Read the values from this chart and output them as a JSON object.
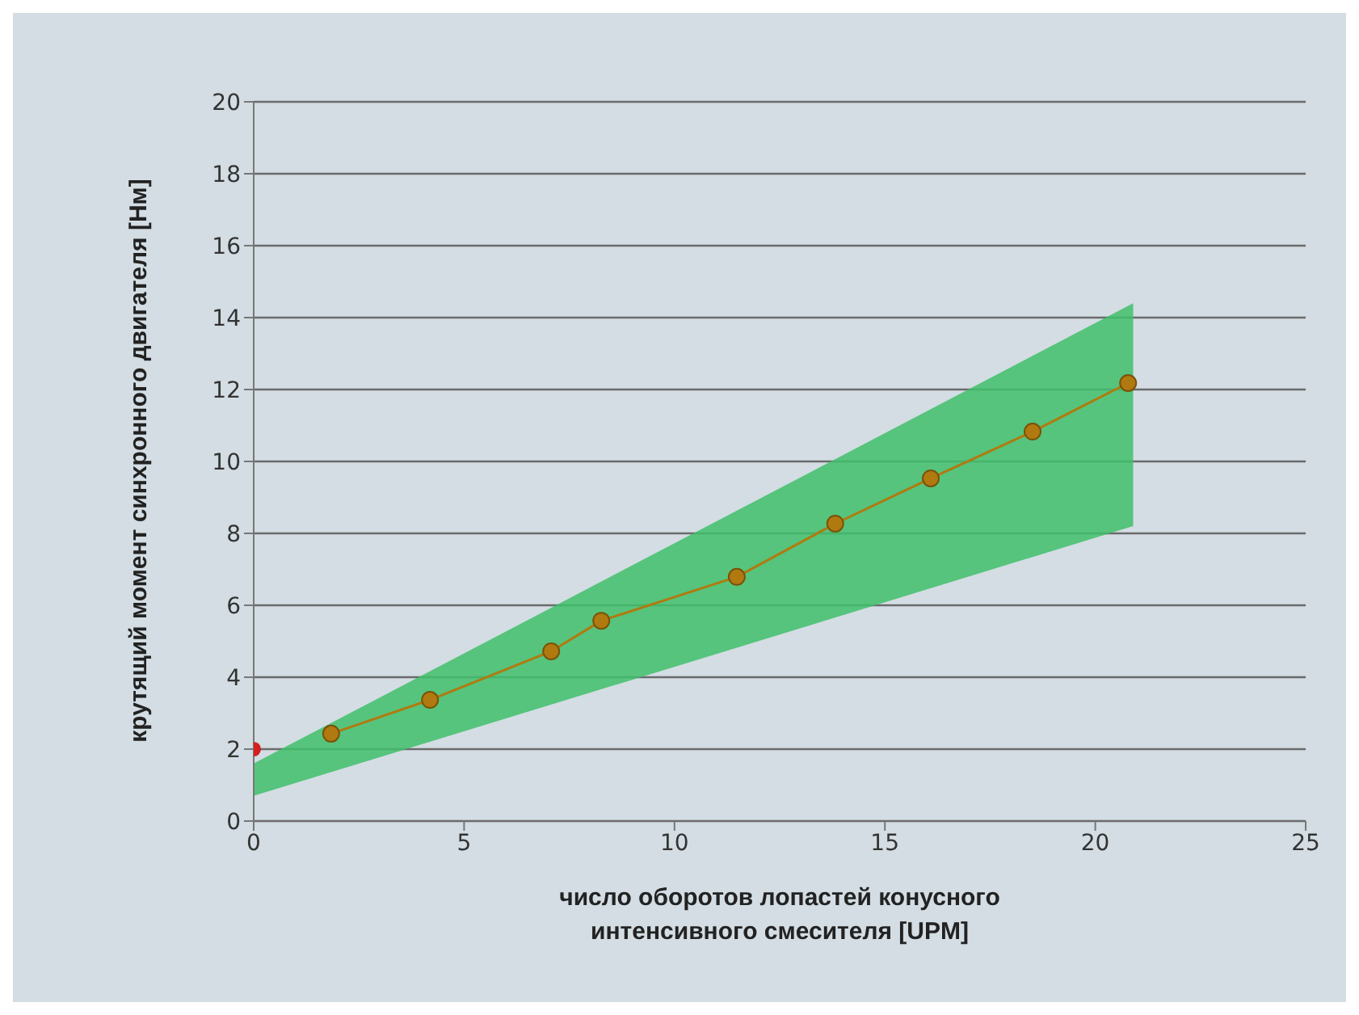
{
  "chart_data": {
    "type": "line",
    "xlabel": "число оборотов лопастей конусного интенсивного смесителя [UPM]",
    "ylabel": "крутящий момент синхронного двигателя [Нм]",
    "xlim": [
      0,
      25
    ],
    "xticks": [
      0,
      5,
      10,
      15,
      20,
      25
    ],
    "ylim": [
      0,
      20
    ],
    "yticks": [
      0,
      2,
      4,
      6,
      8,
      10,
      12,
      14,
      16,
      18,
      20
    ],
    "grid": "y",
    "legend": false,
    "marker": "circle",
    "line_style": "solid",
    "series": [
      {
        "type": "area",
        "color": "#3fbf6a",
        "x": [
          0,
          20.9
        ],
        "values": [
          null,
          null
        ],
        "lower": [
          0.7,
          8.2
        ],
        "upper": [
          1.6,
          14.4
        ]
      },
      {
        "color": "#b07a10",
        "x": [
          1.84,
          4.19,
          7.07,
          8.26,
          11.48,
          13.82,
          16.09,
          18.51,
          20.78
        ],
        "values": [
          2.43,
          3.37,
          4.72,
          5.57,
          6.79,
          8.27,
          9.53,
          10.83,
          12.18
        ]
      },
      {
        "type": "scatter",
        "color": "#d42020",
        "x": [
          0
        ],
        "values": [
          2.0
        ]
      }
    ]
  }
}
